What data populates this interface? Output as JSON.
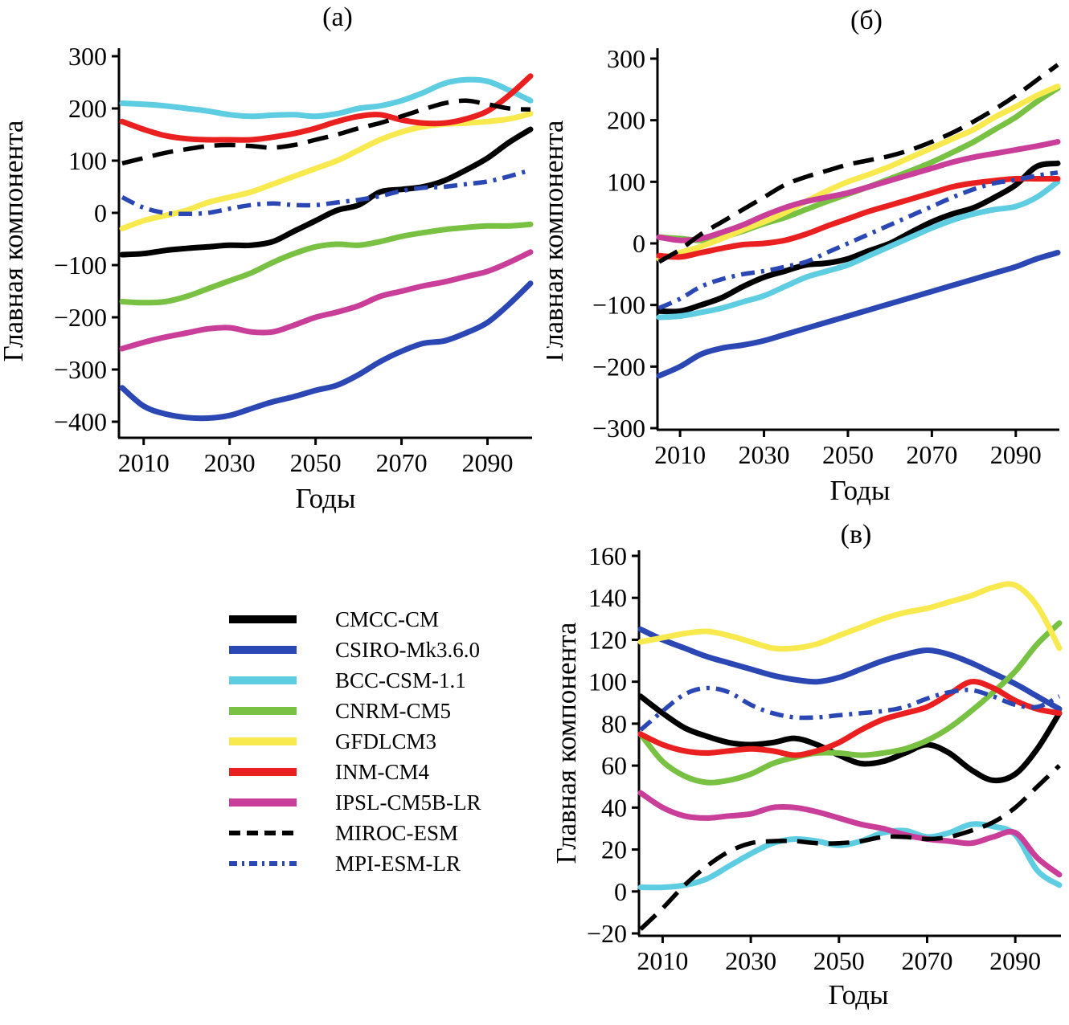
{
  "colors": {
    "background": "#ffffff",
    "axis": "#000000",
    "black": "#000000",
    "blue": "#2a47b3",
    "cyan": "#5ecde2",
    "green": "#79c143",
    "yellow": "#f8e94e",
    "red": "#e9201f",
    "magenta": "#c93e98"
  },
  "legend": {
    "items": [
      {
        "label": "CMCC-CM",
        "color": "#000000",
        "style": "solid"
      },
      {
        "label": "CSIRO-Mk3.6.0",
        "color": "#2a47b3",
        "style": "solid"
      },
      {
        "label": "BCC-CSM-1.1",
        "color": "#5ecde2",
        "style": "solid"
      },
      {
        "label": "CNRM-CM5",
        "color": "#79c143",
        "style": "solid"
      },
      {
        "label": "GFDLCM3",
        "color": "#f8e94e",
        "style": "solid"
      },
      {
        "label": "INM-CM4",
        "color": "#e9201f",
        "style": "solid"
      },
      {
        "label": "IPSL-CM5B-LR",
        "color": "#c93e98",
        "style": "solid"
      },
      {
        "label": "MIROC-ESM",
        "color": "#000000",
        "style": "dashed"
      },
      {
        "label": "MPI-ESM-LR",
        "color": "#2a47b3",
        "style": "dashdot"
      }
    ]
  },
  "chart_data": [
    {
      "id": "a",
      "type": "line",
      "title": "(а)",
      "xlabel": "Годы",
      "ylabel": "Главная компонента",
      "xlim": [
        2005,
        2100
      ],
      "ylim": [
        -400,
        300
      ],
      "xticks": [
        2010,
        2030,
        2050,
        2070,
        2090
      ],
      "yticks": [
        300,
        200,
        100,
        0,
        -100,
        -200,
        -300,
        -400
      ],
      "grid": false,
      "x": [
        2005,
        2010,
        2015,
        2020,
        2025,
        2030,
        2035,
        2040,
        2045,
        2050,
        2055,
        2060,
        2065,
        2070,
        2075,
        2080,
        2085,
        2090,
        2095,
        2100
      ],
      "series": [
        {
          "name": "CMCC-CM",
          "values": [
            -80,
            -78,
            -72,
            -68,
            -65,
            -62,
            -62,
            -55,
            -35,
            -15,
            5,
            15,
            40,
            45,
            50,
            62,
            82,
            105,
            135,
            160
          ]
        },
        {
          "name": "CSIRO-Mk3.6.0",
          "values": [
            -335,
            -370,
            -385,
            -392,
            -393,
            -388,
            -375,
            -362,
            -352,
            -340,
            -330,
            -310,
            -285,
            -265,
            -250,
            -245,
            -230,
            -210,
            -175,
            -135
          ]
        },
        {
          "name": "BCC-CSM-1.1",
          "values": [
            210,
            208,
            205,
            200,
            195,
            188,
            185,
            187,
            188,
            185,
            190,
            200,
            205,
            215,
            230,
            248,
            255,
            252,
            235,
            215
          ]
        },
        {
          "name": "CNRM-CM5",
          "values": [
            -170,
            -172,
            -170,
            -160,
            -145,
            -130,
            -115,
            -95,
            -78,
            -65,
            -60,
            -62,
            -55,
            -45,
            -38,
            -32,
            -28,
            -25,
            -25,
            -22
          ]
        },
        {
          "name": "GFDLCM3",
          "values": [
            -30,
            -15,
            -5,
            5,
            20,
            30,
            40,
            55,
            70,
            85,
            100,
            120,
            140,
            155,
            165,
            170,
            172,
            175,
            180,
            190
          ]
        },
        {
          "name": "INM-CM4",
          "values": [
            175,
            160,
            148,
            142,
            140,
            140,
            140,
            145,
            152,
            162,
            175,
            185,
            188,
            178,
            172,
            172,
            180,
            195,
            225,
            262
          ]
        },
        {
          "name": "IPSL-CM5B-LR",
          "values": [
            -260,
            -248,
            -238,
            -230,
            -222,
            -220,
            -228,
            -228,
            -215,
            -200,
            -190,
            -178,
            -160,
            -150,
            -140,
            -132,
            -122,
            -112,
            -95,
            -75
          ]
        },
        {
          "name": "MIROC-ESM",
          "values": [
            95,
            105,
            115,
            122,
            128,
            130,
            128,
            125,
            130,
            140,
            150,
            162,
            172,
            185,
            198,
            210,
            215,
            208,
            200,
            198
          ]
        },
        {
          "name": "MPI-ESM-LR",
          "values": [
            30,
            10,
            0,
            -2,
            0,
            8,
            15,
            18,
            15,
            15,
            20,
            25,
            32,
            42,
            48,
            50,
            55,
            60,
            70,
            82
          ]
        }
      ]
    },
    {
      "id": "b",
      "type": "line",
      "title": "(б)",
      "xlabel": "Годы",
      "ylabel": "Главная компонента",
      "xlim": [
        2005,
        2100
      ],
      "ylim": [
        -300,
        300
      ],
      "xticks": [
        2010,
        2030,
        2050,
        2070,
        2090
      ],
      "yticks": [
        300,
        200,
        100,
        0,
        -100,
        -200,
        -300
      ],
      "grid": false,
      "x": [
        2005,
        2010,
        2015,
        2020,
        2025,
        2030,
        2035,
        2040,
        2045,
        2050,
        2055,
        2060,
        2065,
        2070,
        2075,
        2080,
        2085,
        2090,
        2095,
        2100
      ],
      "series": [
        {
          "name": "CMCC-CM",
          "values": [
            -110,
            -110,
            -100,
            -88,
            -70,
            -55,
            -45,
            -35,
            -32,
            -25,
            -12,
            0,
            18,
            35,
            48,
            58,
            75,
            95,
            125,
            130
          ]
        },
        {
          "name": "CSIRO-Mk3.6.0",
          "values": [
            -215,
            -200,
            -180,
            -170,
            -165,
            -158,
            -148,
            -138,
            -128,
            -118,
            -108,
            -98,
            -88,
            -78,
            -68,
            -58,
            -48,
            -38,
            -25,
            -15
          ]
        },
        {
          "name": "BCC-CSM-1.1",
          "values": [
            -120,
            -118,
            -112,
            -105,
            -95,
            -85,
            -70,
            -55,
            -45,
            -35,
            -20,
            -5,
            10,
            25,
            38,
            48,
            55,
            60,
            75,
            100
          ]
        },
        {
          "name": "CNRM-CM5",
          "values": [
            10,
            8,
            5,
            10,
            20,
            32,
            42,
            55,
            68,
            80,
            92,
            105,
            118,
            132,
            148,
            165,
            185,
            205,
            230,
            252
          ]
        },
        {
          "name": "GFDLCM3",
          "values": [
            -25,
            -15,
            -5,
            8,
            22,
            35,
            50,
            68,
            85,
            100,
            112,
            125,
            140,
            155,
            170,
            185,
            205,
            222,
            240,
            255
          ]
        },
        {
          "name": "INM-CM4",
          "values": [
            -20,
            -22,
            -15,
            -8,
            -2,
            0,
            5,
            15,
            28,
            40,
            52,
            62,
            72,
            82,
            92,
            98,
            102,
            105,
            105,
            105
          ]
        },
        {
          "name": "IPSL-CM5B-LR",
          "values": [
            10,
            5,
            8,
            18,
            30,
            45,
            58,
            68,
            75,
            82,
            92,
            102,
            112,
            122,
            132,
            140,
            146,
            152,
            158,
            165
          ]
        },
        {
          "name": "MIROC-ESM",
          "values": [
            -30,
            -10,
            15,
            35,
            55,
            75,
            95,
            108,
            118,
            128,
            135,
            142,
            152,
            165,
            180,
            198,
            218,
            240,
            265,
            290
          ]
        },
        {
          "name": "MPI-ESM-LR",
          "values": [
            -105,
            -90,
            -70,
            -58,
            -50,
            -45,
            -38,
            -30,
            -15,
            0,
            15,
            30,
            45,
            60,
            75,
            88,
            98,
            103,
            110,
            115
          ]
        }
      ]
    },
    {
      "id": "v",
      "type": "line",
      "title": "(в)",
      "xlabel": "Годы",
      "ylabel": "Главная компонента",
      "xlim": [
        2005,
        2100
      ],
      "ylim": [
        -20,
        160
      ],
      "xticks": [
        2010,
        2030,
        2050,
        2070,
        2090
      ],
      "yticks": [
        160,
        140,
        120,
        100,
        80,
        60,
        40,
        20,
        0,
        -20
      ],
      "grid": false,
      "x": [
        2005,
        2010,
        2015,
        2020,
        2025,
        2030,
        2035,
        2040,
        2045,
        2050,
        2055,
        2060,
        2065,
        2070,
        2075,
        2080,
        2085,
        2090,
        2095,
        2100
      ],
      "series": [
        {
          "name": "CMCC-CM",
          "values": [
            93,
            85,
            78,
            74,
            71,
            70,
            71,
            73,
            70,
            65,
            61,
            62,
            66,
            70,
            66,
            58,
            53,
            56,
            68,
            85
          ]
        },
        {
          "name": "CSIRO-Mk3.6.0",
          "values": [
            125,
            120,
            116,
            112,
            109,
            106,
            103,
            101,
            100,
            102,
            106,
            110,
            113,
            115,
            113,
            109,
            104,
            99,
            93,
            87
          ]
        },
        {
          "name": "BCC-CSM-1.1",
          "values": [
            2,
            2,
            3,
            6,
            12,
            18,
            23,
            25,
            24,
            22,
            24,
            28,
            29,
            26,
            28,
            32,
            31,
            27,
            10,
            3
          ]
        },
        {
          "name": "CNRM-CM5",
          "values": [
            75,
            62,
            55,
            52,
            53,
            56,
            61,
            64,
            66,
            66,
            65,
            66,
            68,
            72,
            78,
            86,
            95,
            105,
            118,
            128
          ]
        },
        {
          "name": "GFDLCM3",
          "values": [
            119,
            121,
            123,
            124,
            122,
            119,
            116,
            116,
            118,
            122,
            126,
            130,
            133,
            135,
            138,
            141,
            145,
            146,
            136,
            116
          ]
        },
        {
          "name": "INM-CM4",
          "values": [
            75,
            70,
            67,
            66,
            67,
            68,
            67,
            65,
            67,
            71,
            77,
            82,
            85,
            88,
            94,
            100,
            97,
            91,
            87,
            85
          ]
        },
        {
          "name": "IPSL-CM5B-LR",
          "values": [
            47,
            40,
            36,
            35,
            36,
            37,
            40,
            40,
            38,
            35,
            32,
            30,
            27,
            25,
            24,
            23,
            26,
            28,
            16,
            8
          ]
        },
        {
          "name": "MIROC-ESM",
          "values": [
            -18,
            -8,
            3,
            12,
            19,
            23,
            24,
            24,
            23,
            23,
            24,
            26,
            26,
            25,
            26,
            29,
            33,
            40,
            50,
            60
          ]
        },
        {
          "name": "MPI-ESM-LR",
          "values": [
            77,
            86,
            94,
            97,
            95,
            89,
            85,
            83,
            83,
            84,
            85,
            86,
            88,
            92,
            95,
            96,
            93,
            89,
            88,
            93
          ]
        }
      ]
    }
  ]
}
